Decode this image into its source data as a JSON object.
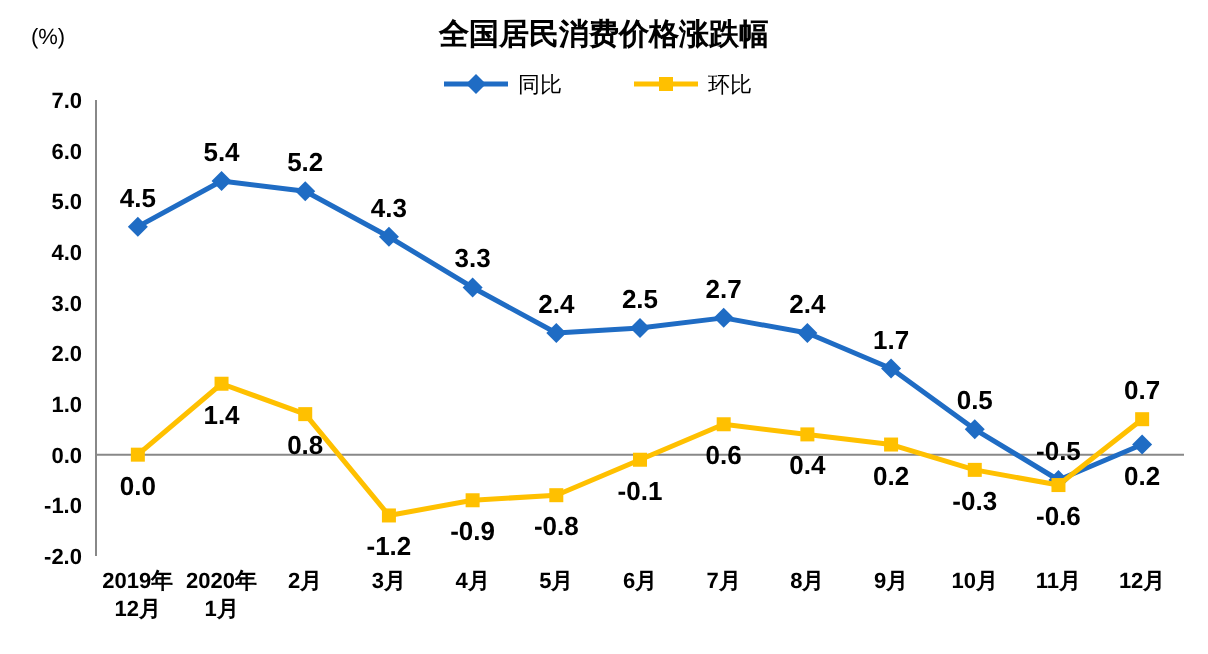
{
  "chart_data": {
    "type": "line",
    "title": "全国居民消费价格涨跌幅",
    "ylabel": "(%)",
    "categories": [
      "2019年\n12月",
      "2020年\n1月",
      "2月",
      "3月",
      "4月",
      "5月",
      "6月",
      "7月",
      "8月",
      "9月",
      "10月",
      "11月",
      "12月"
    ],
    "series": [
      {
        "name": "同比",
        "color": "#1f6cc4",
        "marker": "diamond",
        "values": [
          4.5,
          5.4,
          5.2,
          4.3,
          3.3,
          2.4,
          2.5,
          2.7,
          2.4,
          1.7,
          0.5,
          -0.5,
          0.2
        ],
        "value_labels": [
          "4.5",
          "5.4",
          "5.2",
          "4.3",
          "3.3",
          "2.4",
          "2.5",
          "2.7",
          "2.4",
          "1.7",
          "0.5",
          "-0.5",
          "0.2"
        ]
      },
      {
        "name": "环比",
        "color": "#ffc000",
        "marker": "square",
        "values": [
          0.0,
          1.4,
          0.8,
          -1.2,
          -0.9,
          -0.8,
          -0.1,
          0.6,
          0.4,
          0.2,
          -0.3,
          -0.6,
          0.7
        ],
        "value_labels": [
          "0.0",
          "1.4",
          "0.8",
          "-1.2",
          "-0.9",
          "-0.8",
          "-0.1",
          "0.6",
          "0.4",
          "0.2",
          "-0.3",
          "-0.6",
          "0.7"
        ]
      }
    ],
    "ylim": [
      -2,
      7
    ],
    "yticks": [
      {
        "value": -2,
        "label": "-2.0"
      },
      {
        "value": -1,
        "label": "-1.0"
      },
      {
        "value": 0,
        "label": "0.0"
      },
      {
        "value": 1,
        "label": "1.0"
      },
      {
        "value": 2,
        "label": "2.0"
      },
      {
        "value": 3,
        "label": "3.0"
      },
      {
        "value": 4,
        "label": "4.0"
      },
      {
        "value": 5,
        "label": "5.0"
      },
      {
        "value": 6,
        "label": "6.0"
      },
      {
        "value": 7,
        "label": "7.0"
      }
    ],
    "ref_lines": [
      {
        "axis": "y",
        "value": 0,
        "color": "#888888",
        "line_style": "solid"
      }
    ],
    "legend": "top",
    "grid": false,
    "line_style": "solid"
  }
}
